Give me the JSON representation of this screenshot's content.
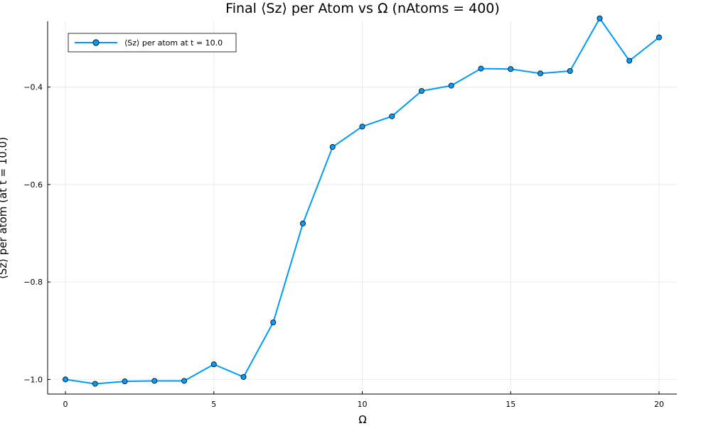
{
  "chart_data": {
    "type": "line",
    "title": "Final ⟨Sz⟩ per Atom vs Ω (nAtoms = 400)",
    "xlabel": "Ω",
    "ylabel": "⟨Sz⟩ per atom (at t = 10.0)",
    "xlim": [
      -0.6,
      20.6
    ],
    "ylim": [
      -1.03,
      -0.265
    ],
    "xticks": [
      0,
      5,
      10,
      15,
      20
    ],
    "xtick_labels": [
      "0",
      "5",
      "10",
      "15",
      "20"
    ],
    "yticks": [
      -1.0,
      -0.8,
      -0.6,
      -0.4
    ],
    "ytick_labels": [
      "−1.0",
      "−0.8",
      "−0.6",
      "−0.4"
    ],
    "grid": true,
    "legend_position": "top-left",
    "series": [
      {
        "name": "⟨Sz⟩ per atom at t = 10.0",
        "color": "#009af9",
        "x": [
          0,
          1,
          2,
          3,
          4,
          5,
          6,
          7,
          8,
          9,
          10,
          11,
          12,
          13,
          14,
          15,
          16,
          17,
          18,
          19,
          20
        ],
        "y": [
          -1.0,
          -1.009,
          -1.004,
          -1.003,
          -1.003,
          -0.969,
          -0.995,
          -0.883,
          -0.68,
          -0.523,
          -0.481,
          -0.46,
          -0.408,
          -0.397,
          -0.362,
          -0.363,
          -0.372,
          -0.367,
          -0.259,
          -0.346,
          -0.298
        ]
      }
    ]
  }
}
